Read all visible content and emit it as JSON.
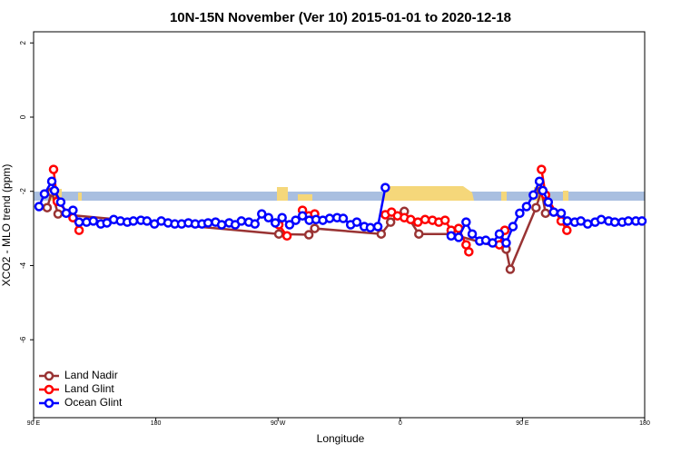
{
  "chart_data": {
    "type": "line",
    "title": "10N-15N November (Ver 10)   2015-01-01 to 2020-12-18",
    "xlabel": "Longitude",
    "ylabel": "XCO2 - MLO trend (ppm)",
    "xlim": [
      90,
      540
    ],
    "ylim": [
      -8.1,
      2.3
    ],
    "xticks": [
      {
        "value": 90,
        "label": "90 E"
      },
      180,
      {
        "value": 270,
        "label": "90 W"
      },
      {
        "value": 360,
        "label": "0"
      },
      {
        "value": 450,
        "label": "90 E"
      },
      {
        "value": 540,
        "label": "180"
      }
    ],
    "yticks": [
      -6,
      -4,
      -2,
      0,
      2
    ],
    "legend": "bottom-left",
    "series": [
      {
        "name": "Land Nadir",
        "color": "#993333",
        "x": [
          100,
          103.4,
          108,
          270.6,
          292.7,
          297,
          346,
          352.9,
          363,
          373.7,
          397.5,
          438,
          441,
          460,
          464,
          467
        ],
        "values": [
          -2.44,
          -2.02,
          -2.61,
          -3.15,
          -3.17,
          -3.0,
          -3.15,
          -2.83,
          -2.54,
          -3.15,
          -3.15,
          -3.56,
          -4.1,
          -2.44,
          -1.98,
          -2.59
        ]
      },
      {
        "name": "Land Glint",
        "color": "#ff0000",
        "x": [
          104.7,
          107.4,
          119,
          123.5,
          200,
          270.6,
          276.6,
          280,
          288,
          292.7,
          297,
          320,
          349,
          353.6,
          358,
          363,
          367.7,
          373,
          378.3,
          383.7,
          388.4,
          393,
          397.5,
          403,
          408.5,
          410.5,
          420,
          433,
          437,
          450,
          464,
          467,
          478.5,
          482.7
        ],
        "values": [
          -1.41,
          -2.27,
          -2.71,
          -3.05,
          null,
          -2.9,
          -3.2,
          null,
          -2.51,
          -2.66,
          -2.61,
          null,
          -2.63,
          -2.56,
          -2.66,
          -2.71,
          -2.76,
          -2.83,
          -2.76,
          -2.78,
          -2.83,
          -2.78,
          -3.05,
          -3.0,
          -3.44,
          -3.63,
          null,
          -3.44,
          -3.05,
          null,
          -1.41,
          -2.1,
          -2.8,
          -3.05
        ]
      },
      {
        "name": "Ocean Glint",
        "color": "#0000ff",
        "x": [
          94,
          98,
          103.4,
          105.4,
          110,
          114,
          119,
          123.5,
          129,
          134,
          139.5,
          144,
          149,
          154,
          159,
          163.5,
          169,
          173.5,
          179,
          184,
          189,
          194,
          199,
          204,
          209,
          214,
          218.5,
          224,
          228.5,
          234,
          238.5,
          243,
          248.5,
          253,
          258,
          263,
          268,
          273,
          278.5,
          283,
          288,
          293,
          298,
          303,
          308,
          313.5,
          318,
          323.5,
          328,
          333.5,
          338,
          343.5,
          349,
          370,
          397.5,
          403,
          408.5,
          413,
          418.5,
          423,
          428,
          433,
          438,
          443,
          448,
          453,
          458,
          462.5,
          465,
          469,
          473,
          478.5,
          483,
          488.5,
          493,
          498,
          503.5,
          508,
          513.5,
          518,
          523.5,
          528,
          533.5,
          538
        ],
        "values": [
          -2.41,
          -2.07,
          -1.73,
          -1.98,
          -2.29,
          -2.59,
          -2.51,
          -2.83,
          -2.83,
          -2.8,
          -2.88,
          -2.85,
          -2.76,
          -2.8,
          -2.83,
          -2.8,
          -2.78,
          -2.8,
          -2.88,
          -2.8,
          -2.85,
          -2.88,
          -2.88,
          -2.85,
          -2.88,
          -2.88,
          -2.85,
          -2.83,
          -2.9,
          -2.85,
          -2.9,
          -2.8,
          -2.83,
          -2.88,
          -2.61,
          -2.71,
          -2.85,
          -2.71,
          -2.9,
          -2.78,
          -2.66,
          -2.78,
          -2.76,
          -2.78,
          -2.73,
          -2.71,
          -2.73,
          -2.9,
          -2.83,
          -2.95,
          -2.98,
          -2.95,
          -1.9,
          null,
          -3.2,
          -3.24,
          -2.83,
          -3.15,
          -3.34,
          -3.32,
          -3.39,
          -3.15,
          -3.39,
          -2.95,
          -2.59,
          -2.41,
          -2.1,
          -1.73,
          -1.98,
          -2.29,
          -2.56,
          -2.59,
          -2.8,
          -2.83,
          -2.8,
          -2.88,
          -2.83,
          -2.76,
          -2.8,
          -2.83,
          -2.83,
          -2.8,
          -2.8,
          -2.8
        ]
      }
    ]
  }
}
